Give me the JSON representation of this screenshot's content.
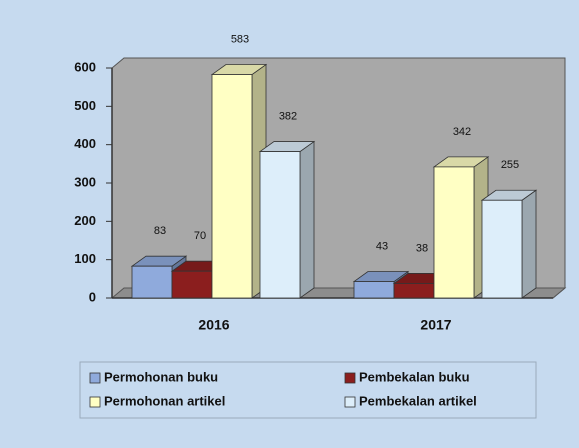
{
  "chart_data": {
    "type": "bar3d",
    "categories": [
      "2016",
      "2017"
    ],
    "series": [
      {
        "name": "Permohonan buku",
        "color": "#8faadc",
        "values": [
          83,
          43
        ]
      },
      {
        "name": "Pembekalan buku",
        "color": "#8b1e1e",
        "values": [
          70,
          38
        ]
      },
      {
        "name": "Permohonan artikel",
        "color": "#ffffc4",
        "values": [
          583,
          342
        ]
      },
      {
        "name": "Pembekalan artikel",
        "color": "#ddeefa",
        "values": [
          382,
          255
        ]
      }
    ],
    "ylim": [
      0,
      600
    ],
    "yticks": [
      0,
      100,
      200,
      300,
      400,
      500,
      600
    ],
    "legend": "bottom"
  }
}
